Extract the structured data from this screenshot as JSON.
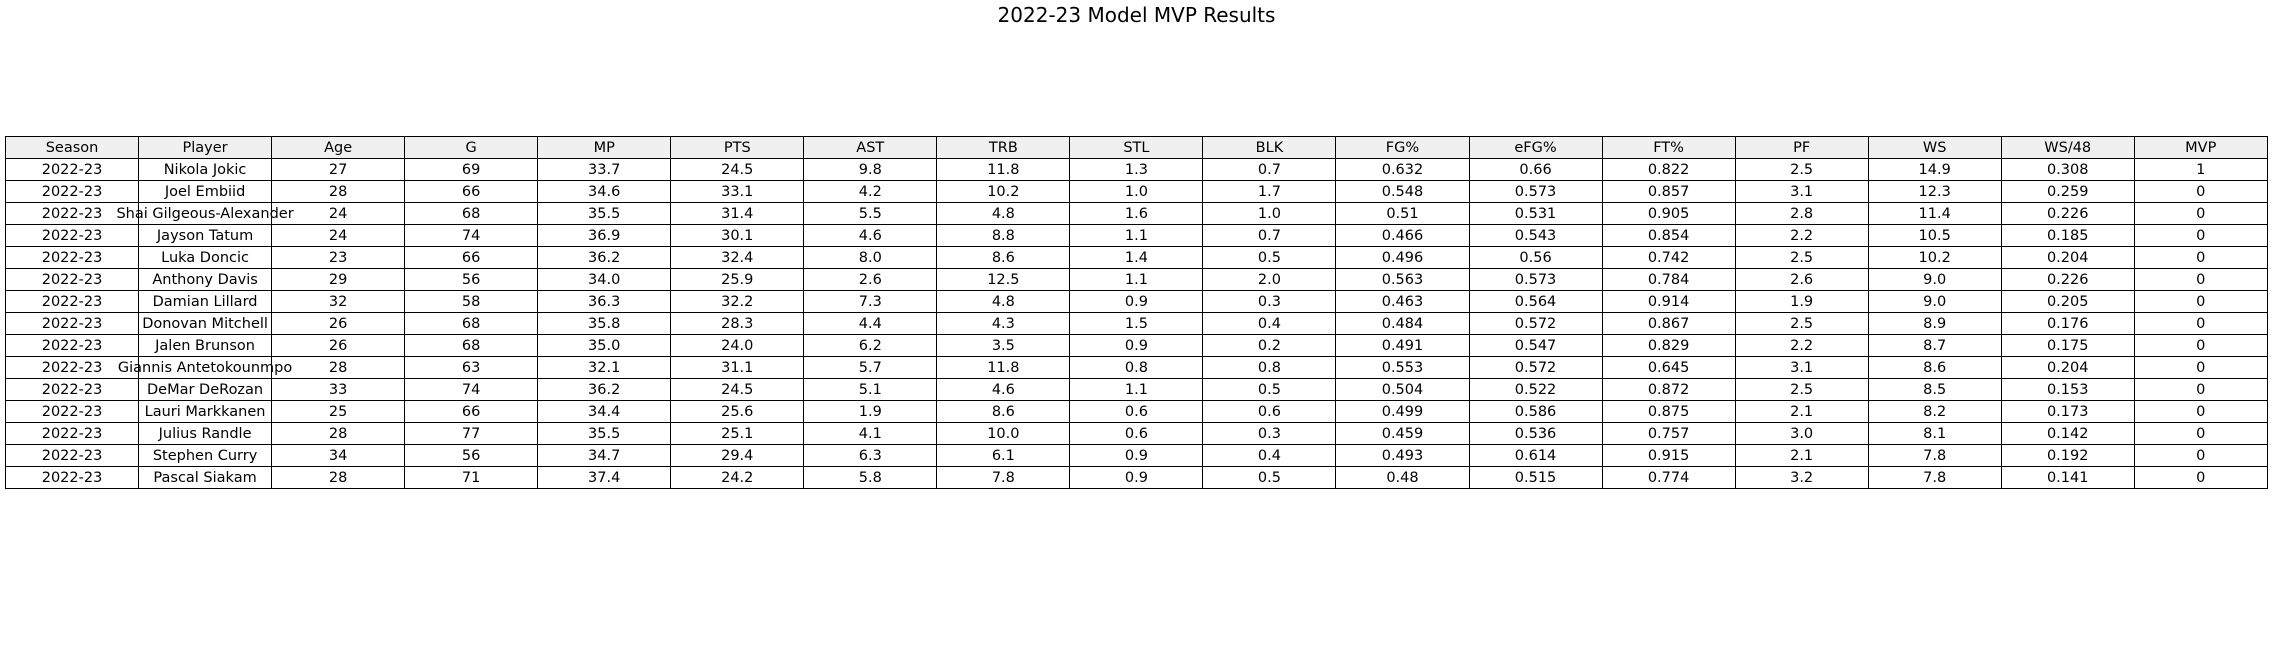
{
  "chart_data": {
    "type": "table",
    "title": "2022-23 Model MVP Results",
    "columns": [
      "Season",
      "Player",
      "Age",
      "G",
      "MP",
      "PTS",
      "AST",
      "TRB",
      "STL",
      "BLK",
      "FG%",
      "eFG%",
      "FT%",
      "PF",
      "WS",
      "WS/48",
      "MVP"
    ],
    "rows": [
      [
        "2022-23",
        "Nikola Jokic",
        "27",
        "69",
        "33.7",
        "24.5",
        "9.8",
        "11.8",
        "1.3",
        "0.7",
        "0.632",
        "0.66",
        "0.822",
        "2.5",
        "14.9",
        "0.308",
        "1"
      ],
      [
        "2022-23",
        "Joel Embiid",
        "28",
        "66",
        "34.6",
        "33.1",
        "4.2",
        "10.2",
        "1.0",
        "1.7",
        "0.548",
        "0.573",
        "0.857",
        "3.1",
        "12.3",
        "0.259",
        "0"
      ],
      [
        "2022-23",
        "Shai Gilgeous-Alexander",
        "24",
        "68",
        "35.5",
        "31.4",
        "5.5",
        "4.8",
        "1.6",
        "1.0",
        "0.51",
        "0.531",
        "0.905",
        "2.8",
        "11.4",
        "0.226",
        "0"
      ],
      [
        "2022-23",
        "Jayson Tatum",
        "24",
        "74",
        "36.9",
        "30.1",
        "4.6",
        "8.8",
        "1.1",
        "0.7",
        "0.466",
        "0.543",
        "0.854",
        "2.2",
        "10.5",
        "0.185",
        "0"
      ],
      [
        "2022-23",
        "Luka Doncic",
        "23",
        "66",
        "36.2",
        "32.4",
        "8.0",
        "8.6",
        "1.4",
        "0.5",
        "0.496",
        "0.56",
        "0.742",
        "2.5",
        "10.2",
        "0.204",
        "0"
      ],
      [
        "2022-23",
        "Anthony Davis",
        "29",
        "56",
        "34.0",
        "25.9",
        "2.6",
        "12.5",
        "1.1",
        "2.0",
        "0.563",
        "0.573",
        "0.784",
        "2.6",
        "9.0",
        "0.226",
        "0"
      ],
      [
        "2022-23",
        "Damian Lillard",
        "32",
        "58",
        "36.3",
        "32.2",
        "7.3",
        "4.8",
        "0.9",
        "0.3",
        "0.463",
        "0.564",
        "0.914",
        "1.9",
        "9.0",
        "0.205",
        "0"
      ],
      [
        "2022-23",
        "Donovan Mitchell",
        "26",
        "68",
        "35.8",
        "28.3",
        "4.4",
        "4.3",
        "1.5",
        "0.4",
        "0.484",
        "0.572",
        "0.867",
        "2.5",
        "8.9",
        "0.176",
        "0"
      ],
      [
        "2022-23",
        "Jalen Brunson",
        "26",
        "68",
        "35.0",
        "24.0",
        "6.2",
        "3.5",
        "0.9",
        "0.2",
        "0.491",
        "0.547",
        "0.829",
        "2.2",
        "8.7",
        "0.175",
        "0"
      ],
      [
        "2022-23",
        "Giannis Antetokounmpo",
        "28",
        "63",
        "32.1",
        "31.1",
        "5.7",
        "11.8",
        "0.8",
        "0.8",
        "0.553",
        "0.572",
        "0.645",
        "3.1",
        "8.6",
        "0.204",
        "0"
      ],
      [
        "2022-23",
        "DeMar DeRozan",
        "33",
        "74",
        "36.2",
        "24.5",
        "5.1",
        "4.6",
        "1.1",
        "0.5",
        "0.504",
        "0.522",
        "0.872",
        "2.5",
        "8.5",
        "0.153",
        "0"
      ],
      [
        "2022-23",
        "Lauri Markkanen",
        "25",
        "66",
        "34.4",
        "25.6",
        "1.9",
        "8.6",
        "0.6",
        "0.6",
        "0.499",
        "0.586",
        "0.875",
        "2.1",
        "8.2",
        "0.173",
        "0"
      ],
      [
        "2022-23",
        "Julius Randle",
        "28",
        "77",
        "35.5",
        "25.1",
        "4.1",
        "10.0",
        "0.6",
        "0.3",
        "0.459",
        "0.536",
        "0.757",
        "3.0",
        "8.1",
        "0.142",
        "0"
      ],
      [
        "2022-23",
        "Stephen Curry",
        "34",
        "56",
        "34.7",
        "29.4",
        "6.3",
        "6.1",
        "0.9",
        "0.4",
        "0.493",
        "0.614",
        "0.915",
        "2.1",
        "7.8",
        "0.192",
        "0"
      ],
      [
        "2022-23",
        "Pascal Siakam",
        "28",
        "71",
        "37.4",
        "24.2",
        "5.8",
        "7.8",
        "0.9",
        "0.5",
        "0.48",
        "0.515",
        "0.774",
        "3.2",
        "7.8",
        "0.141",
        "0"
      ]
    ],
    "colors": {
      "header_background": "#f0f0f0",
      "cell_background": "#ffffff",
      "border": "#000000"
    }
  }
}
